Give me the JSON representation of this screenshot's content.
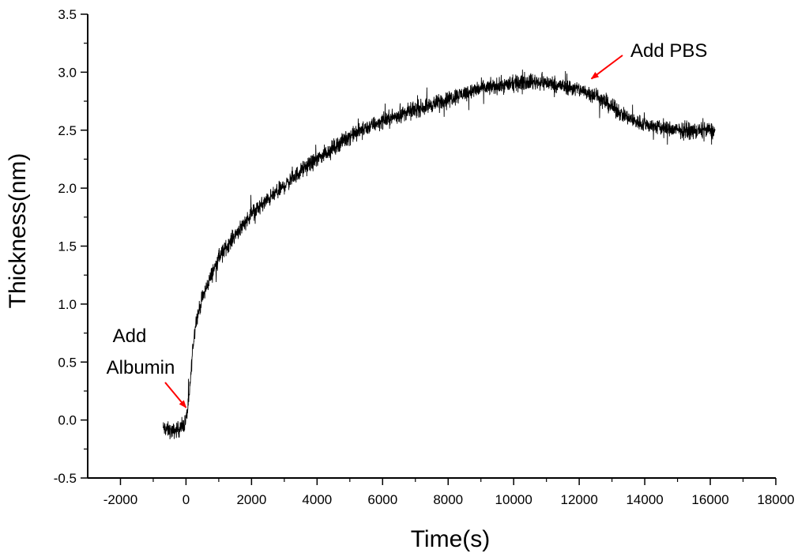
{
  "chart_data": {
    "type": "line",
    "title": "",
    "xlabel": "Time(s)",
    "ylabel": "Thickness(nm)",
    "xlim": [
      -3000,
      18000
    ],
    "ylim": [
      -0.5,
      3.5
    ],
    "x_ticks": [
      -2000,
      0,
      2000,
      4000,
      6000,
      8000,
      10000,
      12000,
      14000,
      16000,
      18000
    ],
    "x_tick_labels": [
      "-2000",
      "0",
      "2000",
      "4000",
      "6000",
      "8000",
      "10000",
      "12000",
      "14000",
      "16000",
      "18000"
    ],
    "y_ticks": [
      -0.5,
      0.0,
      0.5,
      1.0,
      1.5,
      2.0,
      2.5,
      3.0,
      3.5
    ],
    "y_tick_labels": [
      "-0.5",
      "0.0",
      "0.5",
      "1.0",
      "1.5",
      "2.0",
      "2.5",
      "3.0",
      "3.5"
    ],
    "grid": false,
    "legend": "none",
    "series": [
      {
        "color": "#000000",
        "x": [
          -700,
          -400,
          -100,
          0,
          100,
          200,
          300,
          500,
          700,
          1000,
          1500,
          2000,
          2500,
          3000,
          3500,
          4000,
          4500,
          5000,
          5500,
          6000,
          6500,
          7000,
          7500,
          8000,
          8500,
          9000,
          9500,
          10000,
          10500,
          11000,
          11500,
          12000,
          12500,
          13000,
          13500,
          14000,
          14500,
          15000,
          15500,
          16000,
          16150
        ],
        "y": [
          -0.07,
          -0.1,
          -0.06,
          0.0,
          0.2,
          0.6,
          0.85,
          1.05,
          1.2,
          1.4,
          1.6,
          1.78,
          1.9,
          2.02,
          2.15,
          2.25,
          2.35,
          2.45,
          2.52,
          2.58,
          2.63,
          2.68,
          2.72,
          2.77,
          2.82,
          2.86,
          2.88,
          2.9,
          2.92,
          2.91,
          2.88,
          2.85,
          2.8,
          2.7,
          2.6,
          2.55,
          2.52,
          2.5,
          2.49,
          2.5,
          2.49
        ],
        "noise_amplitude": 0.1
      }
    ],
    "annotations": [
      {
        "lines": [
          "Add",
          "Albumin"
        ],
        "arrow_tip": {
          "x": 50,
          "y": 0.08
        },
        "arrow_color": "#ff0000"
      },
      {
        "lines": [
          "Add PBS"
        ],
        "arrow_tip": {
          "x": 12300,
          "y": 2.93
        },
        "arrow_color": "#ff0000"
      }
    ]
  }
}
